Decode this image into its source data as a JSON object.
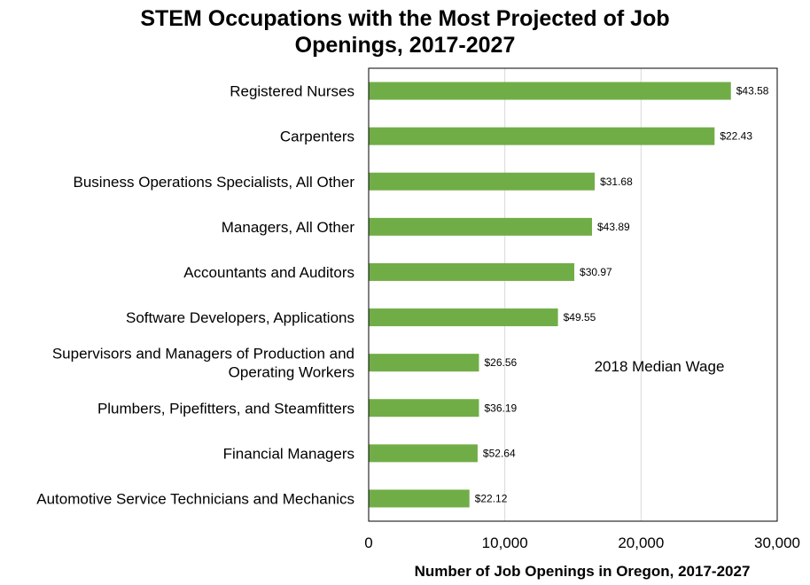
{
  "chart_data": {
    "type": "bar",
    "orientation": "horizontal",
    "title": "STEM Occupations with the Most Projected of Job Openings, 2017-2027",
    "title_lines": [
      "STEM Occupations with the Most Projected of Job",
      "Openings, 2017-2027"
    ],
    "xlabel": "Number of Job Openings in Oregon, 2017-2027",
    "ylabel": "",
    "xlim": [
      0,
      30000
    ],
    "x_ticks": [
      0,
      10000,
      20000,
      30000
    ],
    "x_tick_labels": [
      "0",
      "10,000",
      "20,000",
      "30,000"
    ],
    "grid": "vertical",
    "legend": "none",
    "bar_color": "#70AD47",
    "annotation": "2018 Median Wage",
    "categories": [
      "Registered Nurses",
      "Carpenters",
      "Business Operations Specialists, All Other",
      "Managers, All Other",
      "Accountants and Auditors",
      "Software Developers, Applications",
      "Supervisors and Managers of Production and Operating Workers",
      "Plumbers, Pipefitters, and Steamfitters",
      "Financial Managers",
      "Automotive Service Technicians and Mechanics"
    ],
    "category_lines": [
      [
        "Registered Nurses"
      ],
      [
        "Carpenters"
      ],
      [
        "Business Operations Specialists, All Other"
      ],
      [
        "Managers, All Other"
      ],
      [
        "Accountants and Auditors"
      ],
      [
        "Software Developers, Applications"
      ],
      [
        "Supervisors and Managers of Production and",
        "Operating Workers"
      ],
      [
        "Plumbers, Pipefitters, and Steamfitters"
      ],
      [
        "Financial Managers"
      ],
      [
        "Automotive Service Technicians and Mechanics"
      ]
    ],
    "values": [
      26600,
      25400,
      16600,
      16400,
      15100,
      13900,
      8100,
      8100,
      8000,
      7400
    ],
    "data_labels": [
      "$43.58",
      "$22.43",
      "$31.68",
      "$43.89",
      "$30.97",
      "$49.55",
      "$26.56",
      "$36.19",
      "$52.64",
      "$22.12"
    ]
  }
}
